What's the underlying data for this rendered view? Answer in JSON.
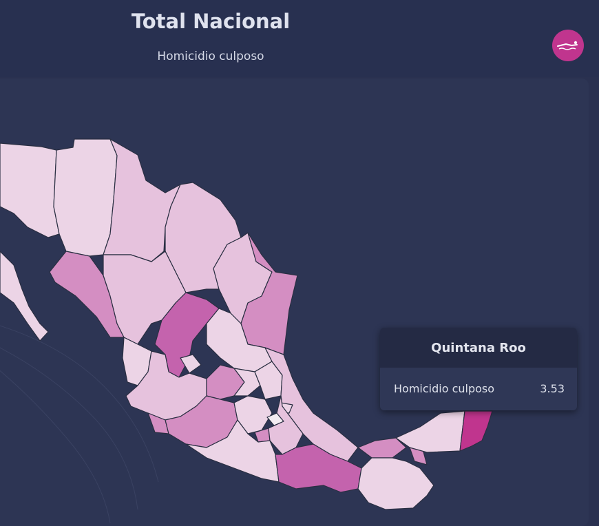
{
  "header": {
    "title": "Total Nacional",
    "subtitle": "Homicidio culposo",
    "logo_icon": "swimmer-logo-icon"
  },
  "colors": {
    "background": "#2a3150",
    "accent": "#c0358e",
    "scale_lightest": "#ecd4e6",
    "scale_light": "#e6c2dd",
    "scale_mid": "#d48ec2",
    "scale_dark": "#c463ad",
    "scale_darkest": "#c0358e"
  },
  "tooltip": {
    "state": "Quintana Roo",
    "metric_label": "Homicidio culposo",
    "metric_value": "3.53"
  }
}
